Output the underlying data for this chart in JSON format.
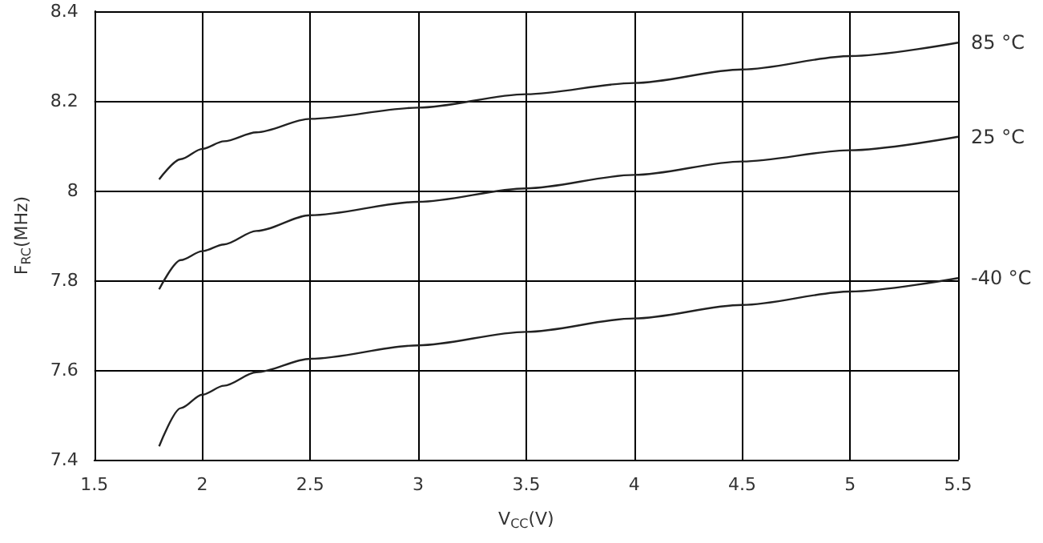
{
  "chart_data": {
    "type": "line",
    "xlabel": "V$_{CC}$(V)",
    "ylabel": "F$_{RC}$(MHz)",
    "x": [
      1.8,
      1.9,
      2.0,
      2.1,
      2.25,
      2.5,
      3.0,
      3.5,
      4.0,
      4.5,
      5.0,
      5.5
    ],
    "series": [
      {
        "name": "85 °C",
        "color": "#222222",
        "values": [
          8.025,
          8.07,
          8.093,
          8.11,
          8.13,
          8.16,
          8.185,
          8.215,
          8.24,
          8.27,
          8.3,
          8.33
        ]
      },
      {
        "name": "25 °C",
        "color": "#222222",
        "values": [
          7.78,
          7.845,
          7.865,
          7.88,
          7.91,
          7.945,
          7.975,
          8.005,
          8.035,
          8.065,
          8.09,
          8.12
        ]
      },
      {
        "name": "-40 °C",
        "color": "#222222",
        "values": [
          7.43,
          7.515,
          7.545,
          7.565,
          7.595,
          7.625,
          7.655,
          7.685,
          7.715,
          7.745,
          7.775,
          7.805
        ]
      }
    ],
    "xlim": [
      1.5,
      5.5
    ],
    "xticks": [
      1.5,
      2,
      2.5,
      3,
      3.5,
      4,
      4.5,
      5,
      5.5
    ],
    "ylim": [
      7.4,
      8.4
    ],
    "yticks": [
      7.4,
      7.6,
      7.8,
      8,
      8.2,
      8.4
    ],
    "grid": true,
    "legend": false,
    "marker": "none",
    "line_style": "solid"
  }
}
